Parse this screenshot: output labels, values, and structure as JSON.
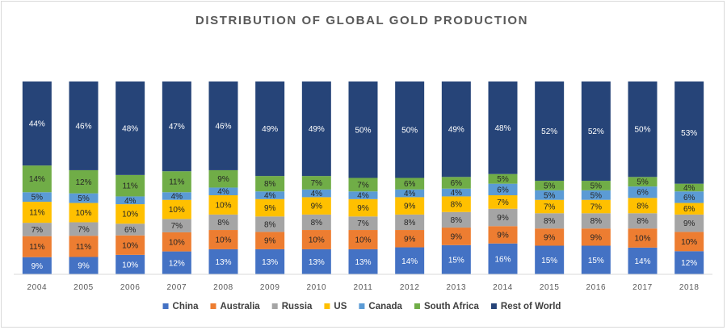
{
  "chart_data": {
    "type": "bar",
    "stacked": true,
    "normalized": true,
    "title": "DISTRIBUTION OF GLOBAL GOLD PRODUCTION",
    "xlabel": "",
    "ylabel": "",
    "ylim": [
      0,
      100
    ],
    "grid": false,
    "legend_position": "bottom",
    "categories": [
      "2004",
      "2005",
      "2006",
      "2007",
      "2008",
      "2009",
      "2010",
      "2011",
      "2012",
      "2013",
      "2014",
      "2015",
      "2016",
      "2017",
      "2018"
    ],
    "series": [
      {
        "name": "China",
        "color": "#4472c4",
        "values": [
          9,
          9,
          10,
          12,
          13,
          13,
          13,
          13,
          14,
          15,
          16,
          15,
          15,
          14,
          12
        ]
      },
      {
        "name": "Australia",
        "color": "#ed7d31",
        "values": [
          11,
          11,
          10,
          10,
          10,
          9,
          10,
          10,
          9,
          9,
          9,
          9,
          9,
          10,
          10
        ]
      },
      {
        "name": "Russia",
        "color": "#a5a5a5",
        "values": [
          7,
          7,
          6,
          7,
          8,
          8,
          8,
          7,
          8,
          8,
          9,
          8,
          8,
          8,
          9
        ]
      },
      {
        "name": "US",
        "color": "#ffc000",
        "values": [
          11,
          10,
          10,
          10,
          10,
          9,
          9,
          9,
          9,
          8,
          7,
          7,
          7,
          8,
          6
        ]
      },
      {
        "name": "Canada",
        "color": "#5b9bd5",
        "values": [
          5,
          5,
          4,
          4,
          4,
          4,
          4,
          4,
          4,
          4,
          6,
          5,
          5,
          6,
          6
        ]
      },
      {
        "name": "South Africa",
        "color": "#70ad47",
        "values": [
          14,
          12,
          11,
          11,
          9,
          8,
          7,
          7,
          6,
          6,
          5,
          5,
          5,
          5,
          4
        ]
      },
      {
        "name": "Rest of World",
        "color": "#264478",
        "values": [
          44,
          46,
          48,
          47,
          46,
          49,
          49,
          50,
          50,
          49,
          48,
          52,
          52,
          50,
          53
        ]
      }
    ],
    "value_suffix": "%"
  }
}
